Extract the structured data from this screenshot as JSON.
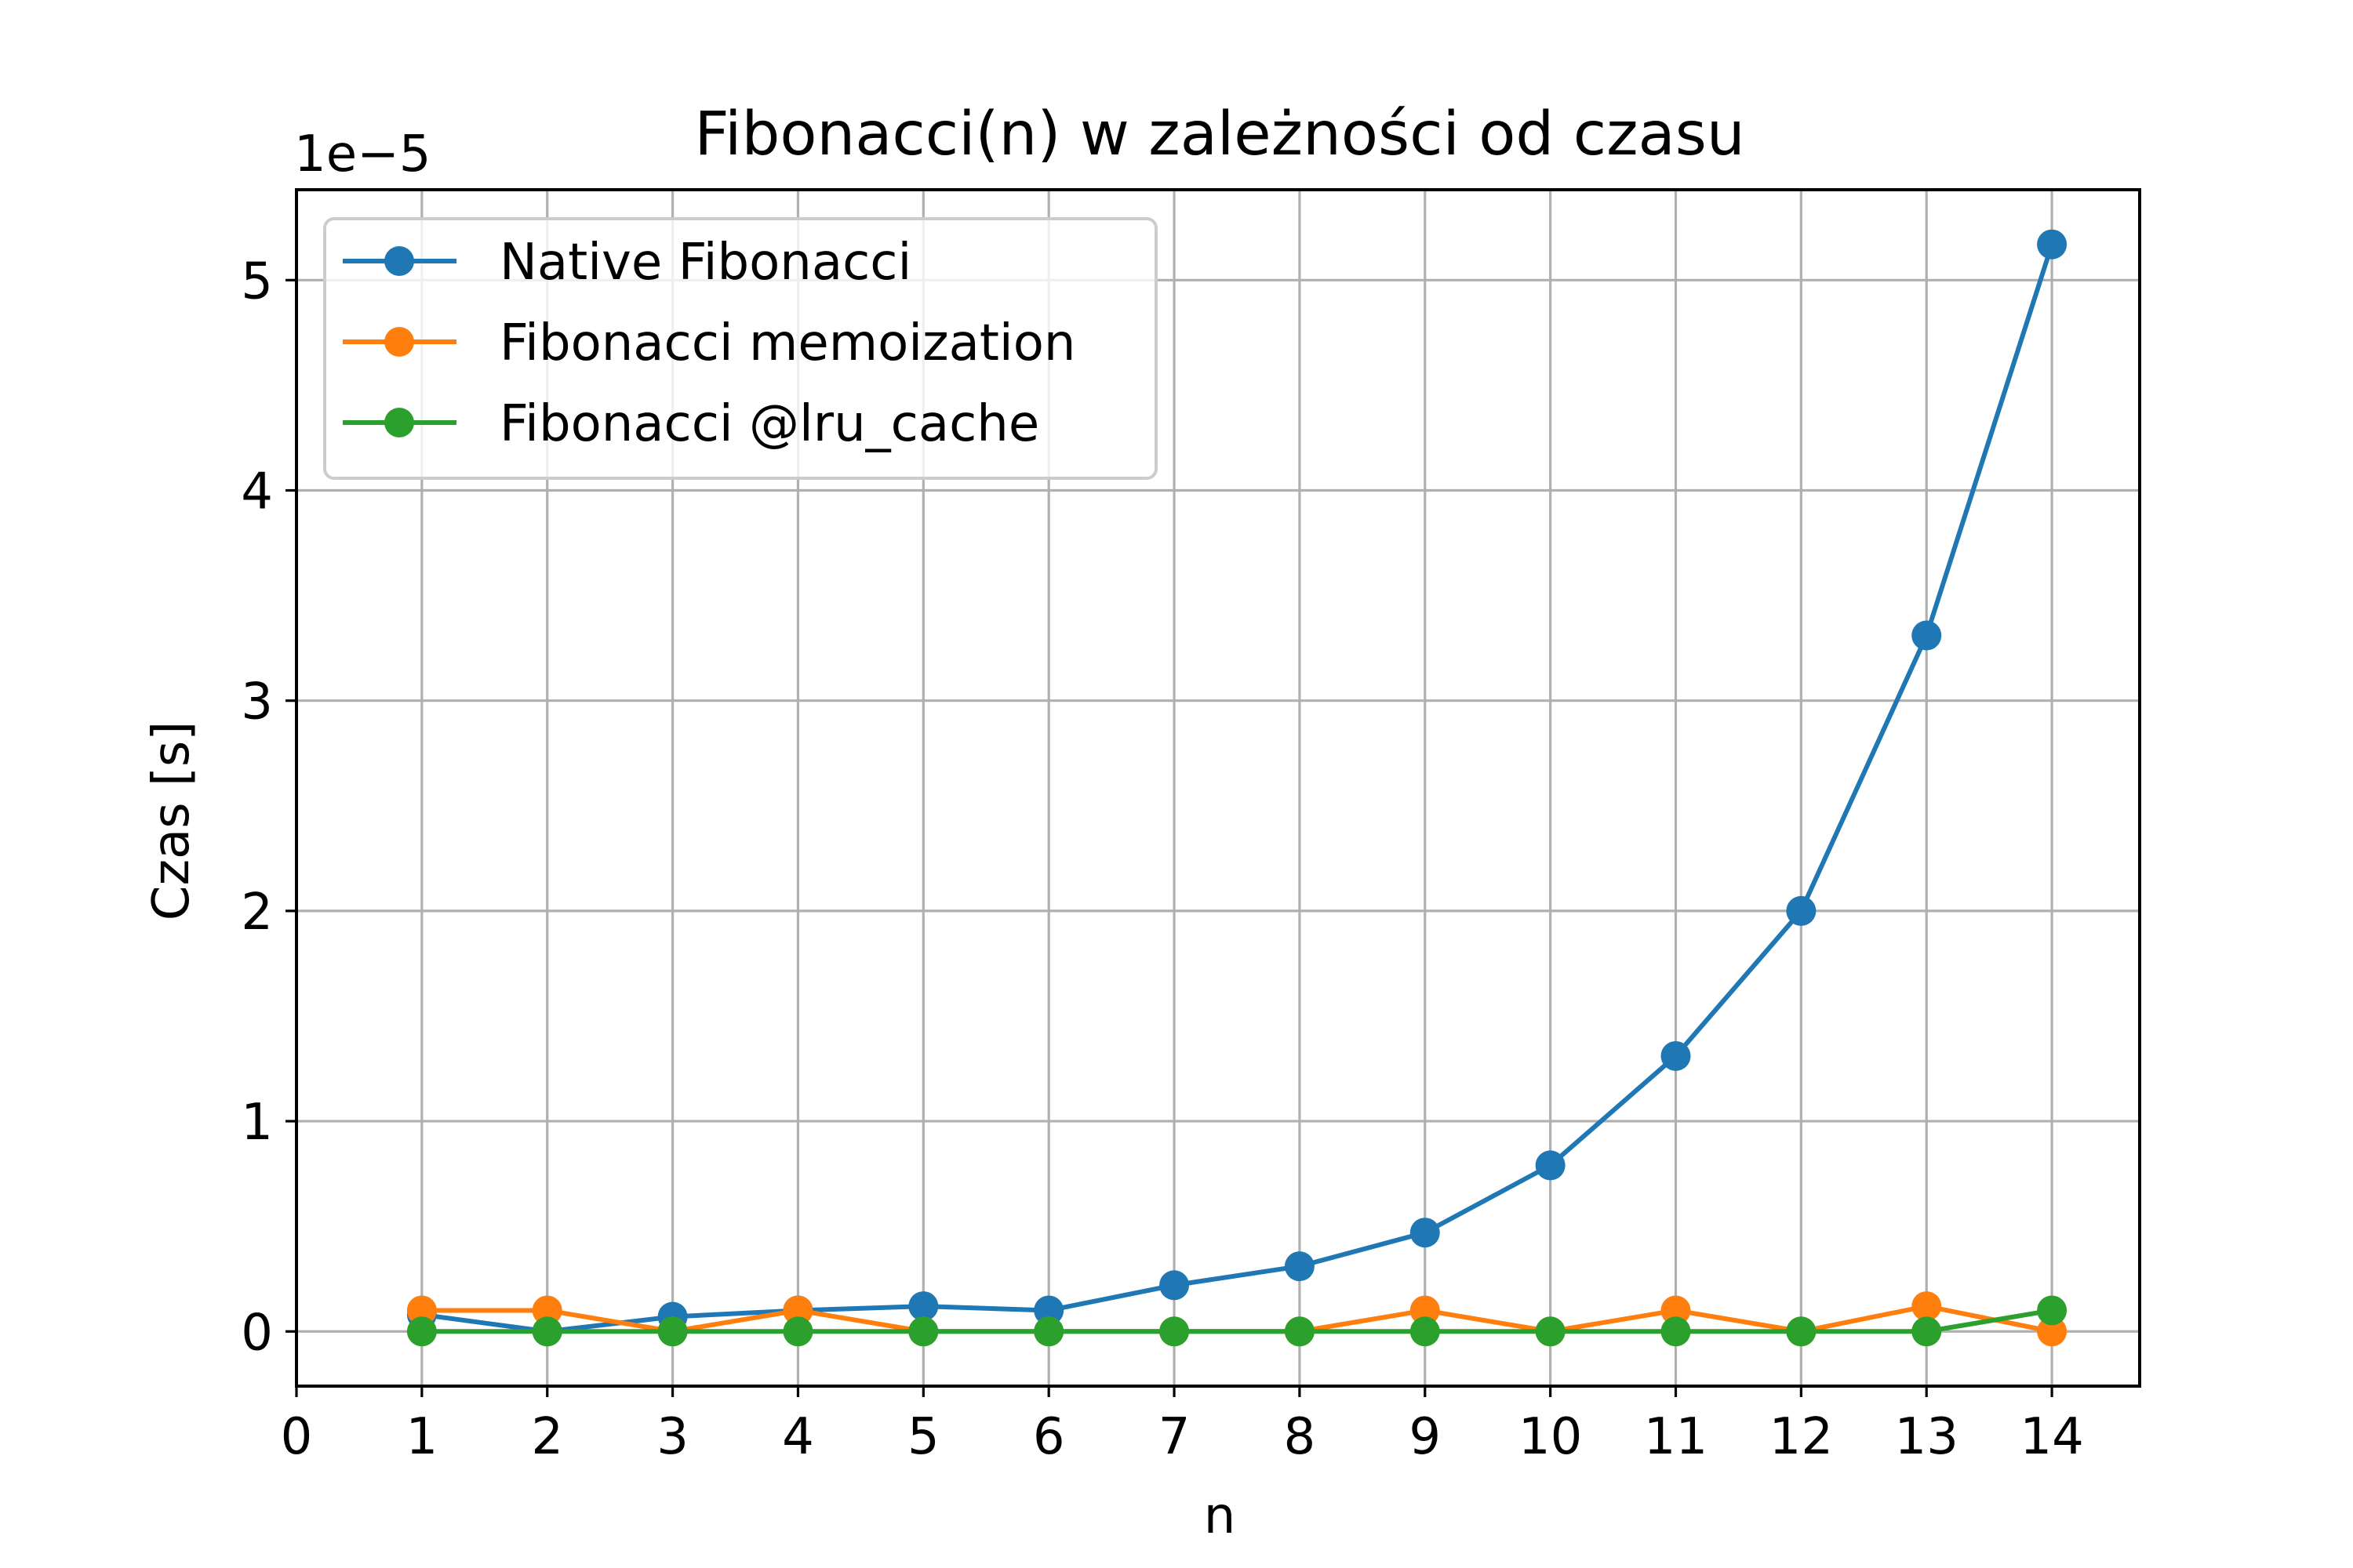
{
  "chart_data": {
    "type": "line",
    "title": "Fibonacci(n) w zależności od czasu",
    "xlabel": "n",
    "ylabel": "Czas [s]",
    "y_offset_label": "1e−5",
    "xlim": [
      0,
      14.7
    ],
    "ylim": [
      -0.26,
      5.43
    ],
    "x_ticks": [
      0,
      1,
      2,
      3,
      4,
      5,
      6,
      7,
      8,
      9,
      10,
      11,
      12,
      13,
      14
    ],
    "y_ticks": [
      0,
      1,
      2,
      3,
      4,
      5
    ],
    "grid": true,
    "legend_position": "top-left",
    "x": [
      1,
      2,
      3,
      4,
      5,
      6,
      7,
      8,
      9,
      10,
      11,
      12,
      13,
      14
    ],
    "series": [
      {
        "name": "Native Fibonacci",
        "color": "#1f77b4",
        "values": [
          0.08,
          0.0,
          0.07,
          0.1,
          0.12,
          0.1,
          0.22,
          0.31,
          0.47,
          0.79,
          1.31,
          2.0,
          3.31,
          5.17
        ]
      },
      {
        "name": "Fibonacci memoization",
        "color": "#ff7f0e",
        "values": [
          0.1,
          0.1,
          0.0,
          0.1,
          0.0,
          0.0,
          0.0,
          0.0,
          0.1,
          0.0,
          0.1,
          0.0,
          0.12,
          0.0
        ]
      },
      {
        "name": "Fibonacci @lru_cache",
        "color": "#2ca02c",
        "values": [
          0.0,
          0.0,
          0.0,
          0.0,
          0.0,
          0.0,
          0.0,
          0.0,
          0.0,
          0.0,
          0.0,
          0.0,
          0.0,
          0.1
        ]
      }
    ]
  }
}
